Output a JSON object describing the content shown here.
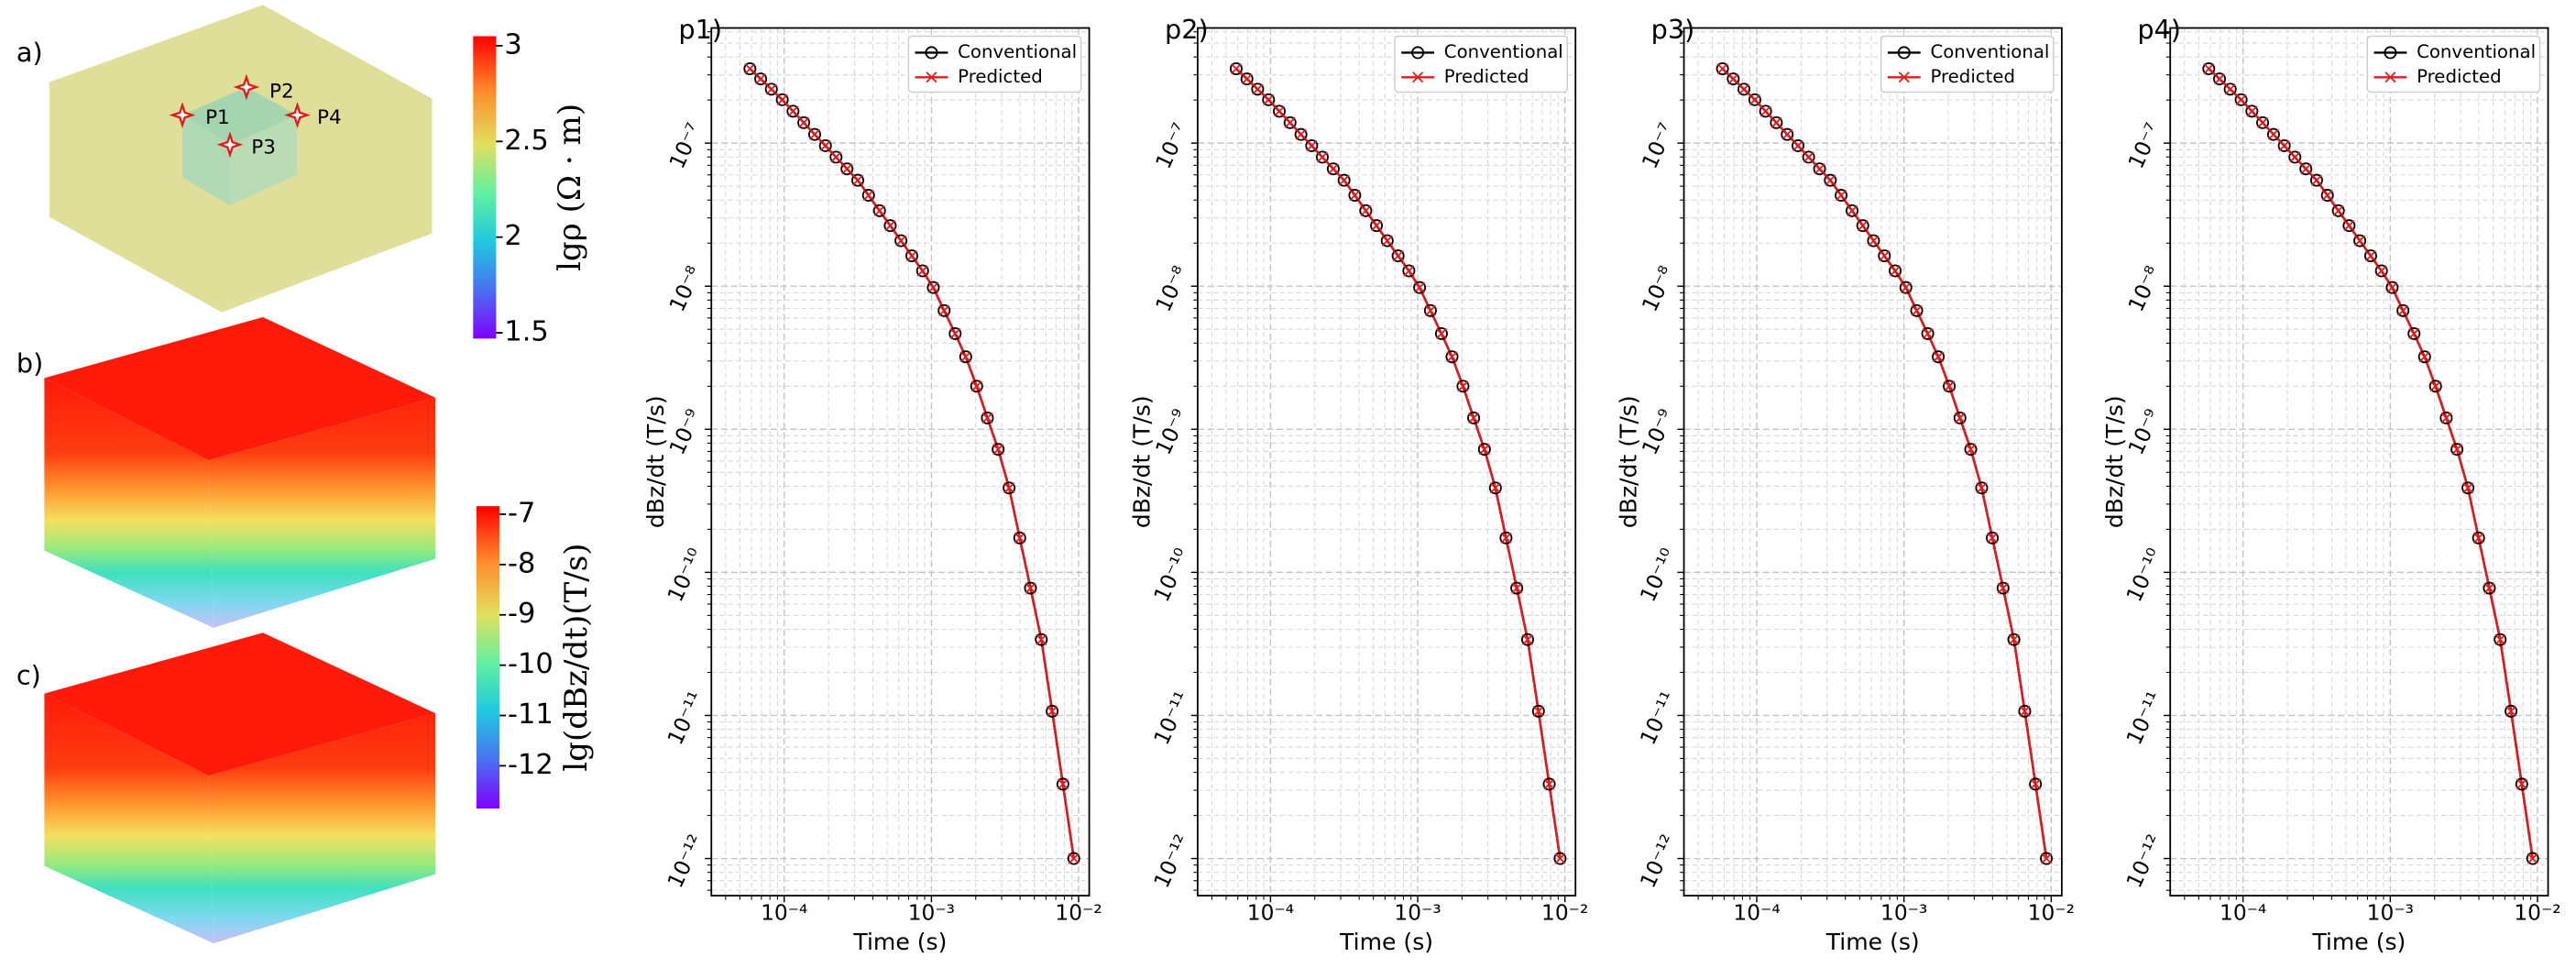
{
  "figure": {
    "panel_labels": [
      "a)",
      "b)",
      "c)"
    ],
    "points": [
      "P1",
      "P2",
      "P3",
      "P4"
    ],
    "colorbars": [
      {
        "label": "lgρ (Ω · m)",
        "lim": [
          1.47,
          3.05
        ],
        "ticks": [
          3,
          2.5,
          2,
          1.5
        ]
      },
      {
        "label": "lg(dBz/dt)(T/s)",
        "lim": [
          -12.85,
          -6.84
        ],
        "ticks": [
          -7,
          -8,
          -9,
          -10,
          -11,
          -12
        ]
      }
    ]
  },
  "chart_data": [
    {
      "type": "line",
      "label": "p1)",
      "xlabel": "Time (s)",
      "ylabel": "dBz/dt (T/s)",
      "log_x": true,
      "log_y": true,
      "grid": true,
      "minor_grid": true,
      "legend": "upper right",
      "xlim": [
        3.2e-05,
        0.0118
      ],
      "ylim": [
        5.5e-13,
        6.38e-07
      ],
      "xticks": [
        {
          "value": 0.0001,
          "label": "10⁻⁴"
        },
        {
          "value": 0.001,
          "label": "10⁻³"
        },
        {
          "value": 0.01,
          "label": "10⁻²"
        }
      ],
      "yticks": [
        {
          "value": 1e-12,
          "label": "10⁻¹²"
        },
        {
          "value": 1e-11,
          "label": "10⁻¹¹"
        },
        {
          "value": 1e-10,
          "label": "10⁻¹⁰"
        },
        {
          "value": 1e-09,
          "label": "10⁻⁹"
        },
        {
          "value": 1e-08,
          "label": "10⁻⁸"
        },
        {
          "value": 1e-07,
          "label": "10⁻⁷"
        }
      ],
      "x": [
        5.85e-05,
        6.92e-05,
        8.18e-05,
        9.7e-05,
        0.0001148,
        0.0001358,
        0.000161,
        0.0001905,
        0.000225,
        0.000267,
        0.000316,
        0.000374,
        0.000444,
        0.000525,
        0.000621,
        0.000736,
        0.000871,
        0.00103,
        0.00122,
        0.00145,
        0.00171,
        0.00203,
        0.0024,
        0.00284,
        0.00337,
        0.00398,
        0.00471,
        0.00558,
        0.00661,
        0.00782,
        0.00927
      ],
      "series": [
        {
          "name": "Conventional",
          "color": "#000000",
          "marker": "o",
          "values": [
            3.31e-07,
            2.81e-07,
            2.38e-07,
            2.01e-07,
            1.67e-07,
            1.39e-07,
            1.15e-07,
            9.59e-08,
            7.98e-08,
            6.61e-08,
            5.5e-08,
            4.32e-08,
            3.37e-08,
            2.65e-08,
            2.08e-08,
            1.63e-08,
            1.28e-08,
            9.79e-09,
            6.75e-09,
            4.66e-09,
            3.21e-09,
            2e-09,
            1.2e-09,
            7.24e-10,
            3.89e-10,
            1.74e-10,
            7.76e-11,
            3.39e-11,
            1.07e-11,
            3.31e-12,
            1e-12
          ]
        },
        {
          "name": "Predicted",
          "color": "#e31a1c",
          "marker": "x",
          "values": [
            3.31e-07,
            2.81e-07,
            2.38e-07,
            2.01e-07,
            1.67e-07,
            1.39e-07,
            1.15e-07,
            9.59e-08,
            7.98e-08,
            6.61e-08,
            5.5e-08,
            4.32e-08,
            3.37e-08,
            2.65e-08,
            2.08e-08,
            1.63e-08,
            1.28e-08,
            9.79e-09,
            6.75e-09,
            4.66e-09,
            3.21e-09,
            2e-09,
            1.2e-09,
            7.24e-10,
            3.89e-10,
            1.74e-10,
            7.76e-11,
            3.39e-11,
            1.07e-11,
            3.31e-12,
            1e-12
          ]
        }
      ]
    },
    {
      "type": "line",
      "label": "p2)",
      "xlabel": "Time (s)",
      "ylabel": "dBz/dt (T/s)",
      "log_x": true,
      "log_y": true,
      "grid": true,
      "minor_grid": true,
      "legend": "upper right",
      "xlim": [
        3.2e-05,
        0.0118
      ],
      "ylim": [
        5.5e-13,
        6.38e-07
      ],
      "xticks": [
        {
          "value": 0.0001,
          "label": "10⁻⁴"
        },
        {
          "value": 0.001,
          "label": "10⁻³"
        },
        {
          "value": 0.01,
          "label": "10⁻²"
        }
      ],
      "yticks": [
        {
          "value": 1e-12,
          "label": "10⁻¹²"
        },
        {
          "value": 1e-11,
          "label": "10⁻¹¹"
        },
        {
          "value": 1e-10,
          "label": "10⁻¹⁰"
        },
        {
          "value": 1e-09,
          "label": "10⁻⁹"
        },
        {
          "value": 1e-08,
          "label": "10⁻⁸"
        },
        {
          "value": 1e-07,
          "label": "10⁻⁷"
        }
      ],
      "x": [
        5.85e-05,
        6.92e-05,
        8.18e-05,
        9.7e-05,
        0.0001148,
        0.0001358,
        0.000161,
        0.0001905,
        0.000225,
        0.000267,
        0.000316,
        0.000374,
        0.000444,
        0.000525,
        0.000621,
        0.000736,
        0.000871,
        0.00103,
        0.00122,
        0.00145,
        0.00171,
        0.00203,
        0.0024,
        0.00284,
        0.00337,
        0.00398,
        0.00471,
        0.00558,
        0.00661,
        0.00782,
        0.00927
      ],
      "series": [
        {
          "name": "Conventional",
          "color": "#000000",
          "marker": "o",
          "values": [
            3.31e-07,
            2.81e-07,
            2.38e-07,
            2.01e-07,
            1.67e-07,
            1.39e-07,
            1.15e-07,
            9.59e-08,
            7.98e-08,
            6.61e-08,
            5.5e-08,
            4.32e-08,
            3.37e-08,
            2.65e-08,
            2.08e-08,
            1.63e-08,
            1.28e-08,
            9.79e-09,
            6.75e-09,
            4.66e-09,
            3.21e-09,
            2e-09,
            1.2e-09,
            7.24e-10,
            3.89e-10,
            1.74e-10,
            7.76e-11,
            3.39e-11,
            1.07e-11,
            3.31e-12,
            1e-12
          ]
        },
        {
          "name": "Predicted",
          "color": "#e31a1c",
          "marker": "x",
          "values": [
            3.31e-07,
            2.81e-07,
            2.38e-07,
            2.01e-07,
            1.67e-07,
            1.39e-07,
            1.15e-07,
            9.59e-08,
            7.98e-08,
            6.61e-08,
            5.5e-08,
            4.32e-08,
            3.37e-08,
            2.65e-08,
            2.08e-08,
            1.63e-08,
            1.28e-08,
            9.79e-09,
            6.75e-09,
            4.66e-09,
            3.21e-09,
            2e-09,
            1.2e-09,
            7.24e-10,
            3.89e-10,
            1.74e-10,
            7.76e-11,
            3.39e-11,
            1.07e-11,
            3.31e-12,
            1e-12
          ]
        }
      ]
    },
    {
      "type": "line",
      "label": "p3)",
      "xlabel": "Time (s)",
      "ylabel": "dBz/dt (T/s)",
      "log_x": true,
      "log_y": true,
      "grid": true,
      "minor_grid": true,
      "legend": "upper right",
      "xlim": [
        3.2e-05,
        0.0118
      ],
      "ylim": [
        5.5e-13,
        6.38e-07
      ],
      "xticks": [
        {
          "value": 0.0001,
          "label": "10⁻⁴"
        },
        {
          "value": 0.001,
          "label": "10⁻³"
        },
        {
          "value": 0.01,
          "label": "10⁻²"
        }
      ],
      "yticks": [
        {
          "value": 1e-12,
          "label": "10⁻¹²"
        },
        {
          "value": 1e-11,
          "label": "10⁻¹¹"
        },
        {
          "value": 1e-10,
          "label": "10⁻¹⁰"
        },
        {
          "value": 1e-09,
          "label": "10⁻⁹"
        },
        {
          "value": 1e-08,
          "label": "10⁻⁸"
        },
        {
          "value": 1e-07,
          "label": "10⁻⁷"
        }
      ],
      "x": [
        5.85e-05,
        6.92e-05,
        8.18e-05,
        9.7e-05,
        0.0001148,
        0.0001358,
        0.000161,
        0.0001905,
        0.000225,
        0.000267,
        0.000316,
        0.000374,
        0.000444,
        0.000525,
        0.000621,
        0.000736,
        0.000871,
        0.00103,
        0.00122,
        0.00145,
        0.00171,
        0.00203,
        0.0024,
        0.00284,
        0.00337,
        0.00398,
        0.00471,
        0.00558,
        0.00661,
        0.00782,
        0.00927
      ],
      "series": [
        {
          "name": "Conventional",
          "color": "#000000",
          "marker": "o",
          "values": [
            3.31e-07,
            2.81e-07,
            2.38e-07,
            2.01e-07,
            1.67e-07,
            1.39e-07,
            1.15e-07,
            9.59e-08,
            7.98e-08,
            6.61e-08,
            5.5e-08,
            4.32e-08,
            3.37e-08,
            2.65e-08,
            2.08e-08,
            1.63e-08,
            1.28e-08,
            9.79e-09,
            6.75e-09,
            4.66e-09,
            3.21e-09,
            2e-09,
            1.2e-09,
            7.24e-10,
            3.89e-10,
            1.74e-10,
            7.76e-11,
            3.39e-11,
            1.07e-11,
            3.31e-12,
            1e-12
          ]
        },
        {
          "name": "Predicted",
          "color": "#e31a1c",
          "marker": "x",
          "values": [
            3.31e-07,
            2.81e-07,
            2.38e-07,
            2.01e-07,
            1.67e-07,
            1.39e-07,
            1.15e-07,
            9.59e-08,
            7.98e-08,
            6.61e-08,
            5.5e-08,
            4.32e-08,
            3.37e-08,
            2.65e-08,
            2.08e-08,
            1.63e-08,
            1.28e-08,
            9.79e-09,
            6.75e-09,
            4.66e-09,
            3.21e-09,
            2e-09,
            1.2e-09,
            7.24e-10,
            3.89e-10,
            1.74e-10,
            7.76e-11,
            3.39e-11,
            1.07e-11,
            3.31e-12,
            1e-12
          ]
        }
      ]
    },
    {
      "type": "line",
      "label": "p4)",
      "xlabel": "Time (s)",
      "ylabel": "dBz/dt (T/s)",
      "log_x": true,
      "log_y": true,
      "grid": true,
      "minor_grid": true,
      "legend": "upper right",
      "xlim": [
        3.2e-05,
        0.0118
      ],
      "ylim": [
        5.5e-13,
        6.38e-07
      ],
      "xticks": [
        {
          "value": 0.0001,
          "label": "10⁻⁴"
        },
        {
          "value": 0.001,
          "label": "10⁻³"
        },
        {
          "value": 0.01,
          "label": "10⁻²"
        }
      ],
      "yticks": [
        {
          "value": 1e-12,
          "label": "10⁻¹²"
        },
        {
          "value": 1e-11,
          "label": "10⁻¹¹"
        },
        {
          "value": 1e-10,
          "label": "10⁻¹⁰"
        },
        {
          "value": 1e-09,
          "label": "10⁻⁹"
        },
        {
          "value": 1e-08,
          "label": "10⁻⁸"
        },
        {
          "value": 1e-07,
          "label": "10⁻⁷"
        }
      ],
      "x": [
        5.85e-05,
        6.92e-05,
        8.18e-05,
        9.7e-05,
        0.0001148,
        0.0001358,
        0.000161,
        0.0001905,
        0.000225,
        0.000267,
        0.000316,
        0.000374,
        0.000444,
        0.000525,
        0.000621,
        0.000736,
        0.000871,
        0.00103,
        0.00122,
        0.00145,
        0.00171,
        0.00203,
        0.0024,
        0.00284,
        0.00337,
        0.00398,
        0.00471,
        0.00558,
        0.00661,
        0.00782,
        0.00927
      ],
      "series": [
        {
          "name": "Conventional",
          "color": "#000000",
          "marker": "o",
          "values": [
            3.31e-07,
            2.81e-07,
            2.38e-07,
            2.01e-07,
            1.67e-07,
            1.39e-07,
            1.15e-07,
            9.59e-08,
            7.98e-08,
            6.61e-08,
            5.5e-08,
            4.32e-08,
            3.37e-08,
            2.65e-08,
            2.08e-08,
            1.63e-08,
            1.28e-08,
            9.79e-09,
            6.75e-09,
            4.66e-09,
            3.21e-09,
            2e-09,
            1.2e-09,
            7.24e-10,
            3.89e-10,
            1.74e-10,
            7.76e-11,
            3.39e-11,
            1.07e-11,
            3.31e-12,
            1e-12
          ]
        },
        {
          "name": "Predicted",
          "color": "#e31a1c",
          "marker": "x",
          "values": [
            3.31e-07,
            2.81e-07,
            2.38e-07,
            2.01e-07,
            1.67e-07,
            1.39e-07,
            1.15e-07,
            9.59e-08,
            7.98e-08,
            6.61e-08,
            5.5e-08,
            4.32e-08,
            3.37e-08,
            2.65e-08,
            2.08e-08,
            1.63e-08,
            1.28e-08,
            9.79e-09,
            6.75e-09,
            4.66e-09,
            3.21e-09,
            2e-09,
            1.2e-09,
            7.24e-10,
            3.89e-10,
            1.74e-10,
            7.76e-11,
            3.39e-11,
            1.07e-11,
            3.31e-12,
            1e-12
          ]
        }
      ]
    }
  ]
}
